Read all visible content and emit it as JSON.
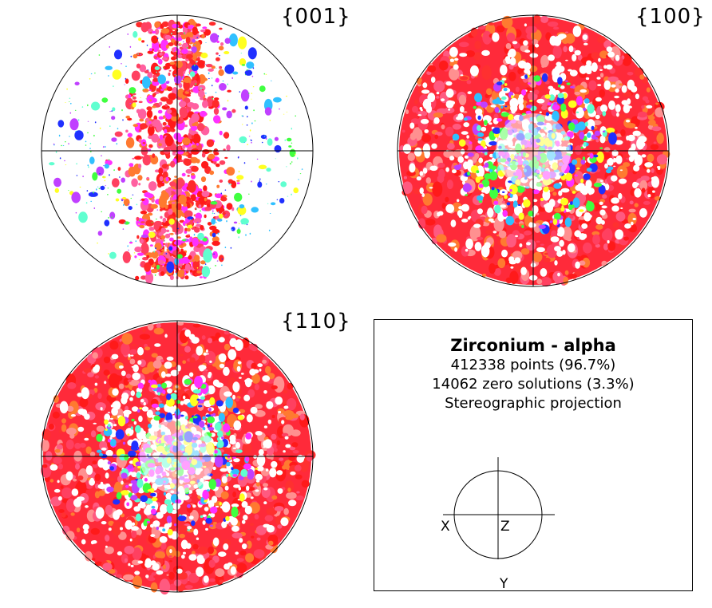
{
  "chart_data": [
    {
      "type": "scatter",
      "title": "{001}",
      "description_of_plot": "stereographic pole figure",
      "colors": [
        "#ff1a1a",
        "#ff4060",
        "#ff7a30",
        "#ff30ff",
        "#c040ff",
        "#2030ff",
        "#30c0ff",
        "#40ff40",
        "#ffff20",
        "#ff9090"
      ]
    },
    {
      "type": "scatter",
      "title": "{100}",
      "colors": [
        "#ff1a1a",
        "#ff4060",
        "#ff7a30",
        "#ff30ff",
        "#c040ff",
        "#2030ff",
        "#30c0ff",
        "#40ff40",
        "#ffff20",
        "#ff9090"
      ]
    },
    {
      "type": "scatter",
      "title": "{110}",
      "colors": [
        "#ff1a1a",
        "#ff4060",
        "#ff7a30",
        "#ff30ff",
        "#c040ff",
        "#2030ff",
        "#30c0ff",
        "#40ff40",
        "#ffff20",
        "#ff9090"
      ]
    }
  ],
  "legend": {
    "title": "Zirconium - alpha",
    "points_line": "412338 points  (96.7%)",
    "zero_line": "14062 zero solutions (3.3%)",
    "projection_line": "Stereographic projection",
    "axis_x": "X",
    "axis_y": "Y",
    "axis_z": "Z"
  }
}
